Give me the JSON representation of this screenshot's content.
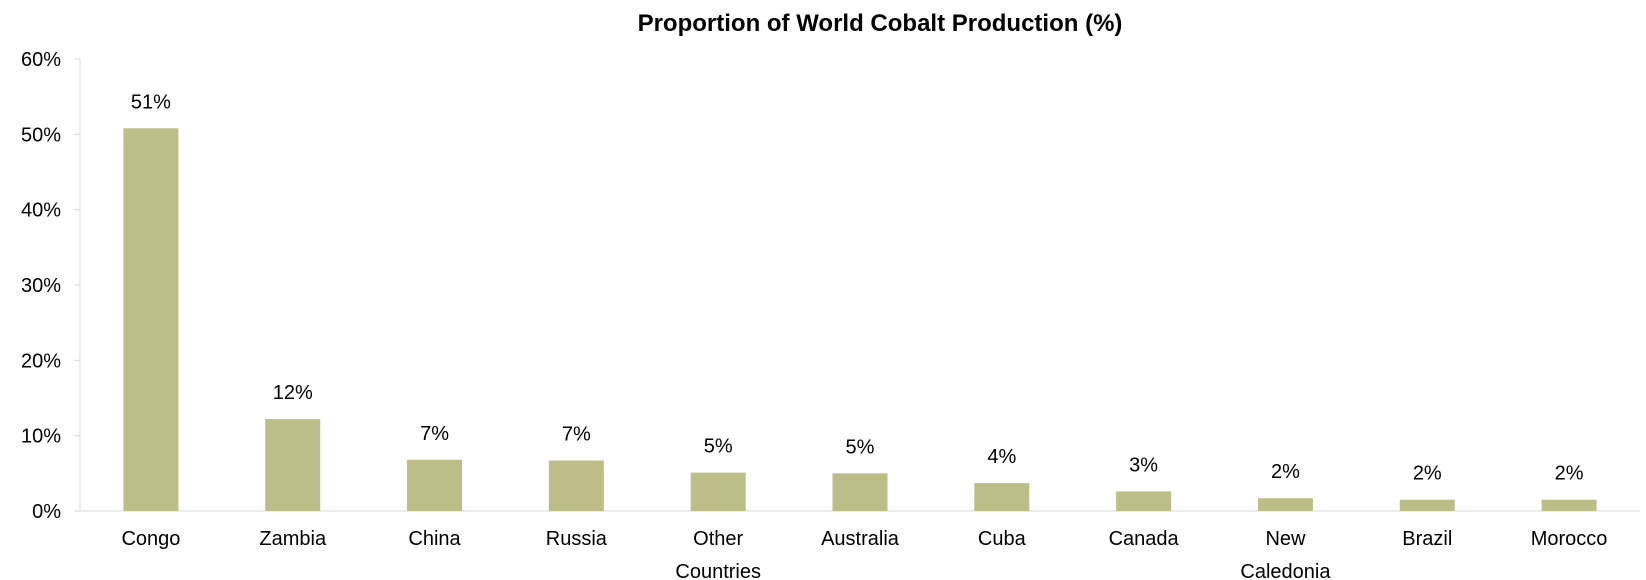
{
  "chart_data": {
    "type": "bar",
    "title": "Proportion of World Cobalt Production (%)",
    "xlabel": "",
    "ylabel": "",
    "ylim": [
      0,
      60
    ],
    "yticks": [
      "0%",
      "10%",
      "20%",
      "30%",
      "40%",
      "50%",
      "60%"
    ],
    "grid": false,
    "legend": "none",
    "bar_color": "#bdbe87",
    "categories": [
      [
        "Congo"
      ],
      [
        "Zambia"
      ],
      [
        "China"
      ],
      [
        "Russia"
      ],
      [
        "Other",
        "Countries"
      ],
      [
        "Australia"
      ],
      [
        "Cuba"
      ],
      [
        "Canada"
      ],
      [
        "New",
        "Caledonia"
      ],
      [
        "Brazil"
      ],
      [
        "Morocco"
      ]
    ],
    "values": [
      50.8,
      12.2,
      6.8,
      6.7,
      5.1,
      5.0,
      3.7,
      2.6,
      1.7,
      1.5,
      1.5
    ],
    "data_labels": [
      "51%",
      "12%",
      "7%",
      "7%",
      "5%",
      "5%",
      "4%",
      "3%",
      "2%",
      "2%",
      "2%"
    ]
  }
}
